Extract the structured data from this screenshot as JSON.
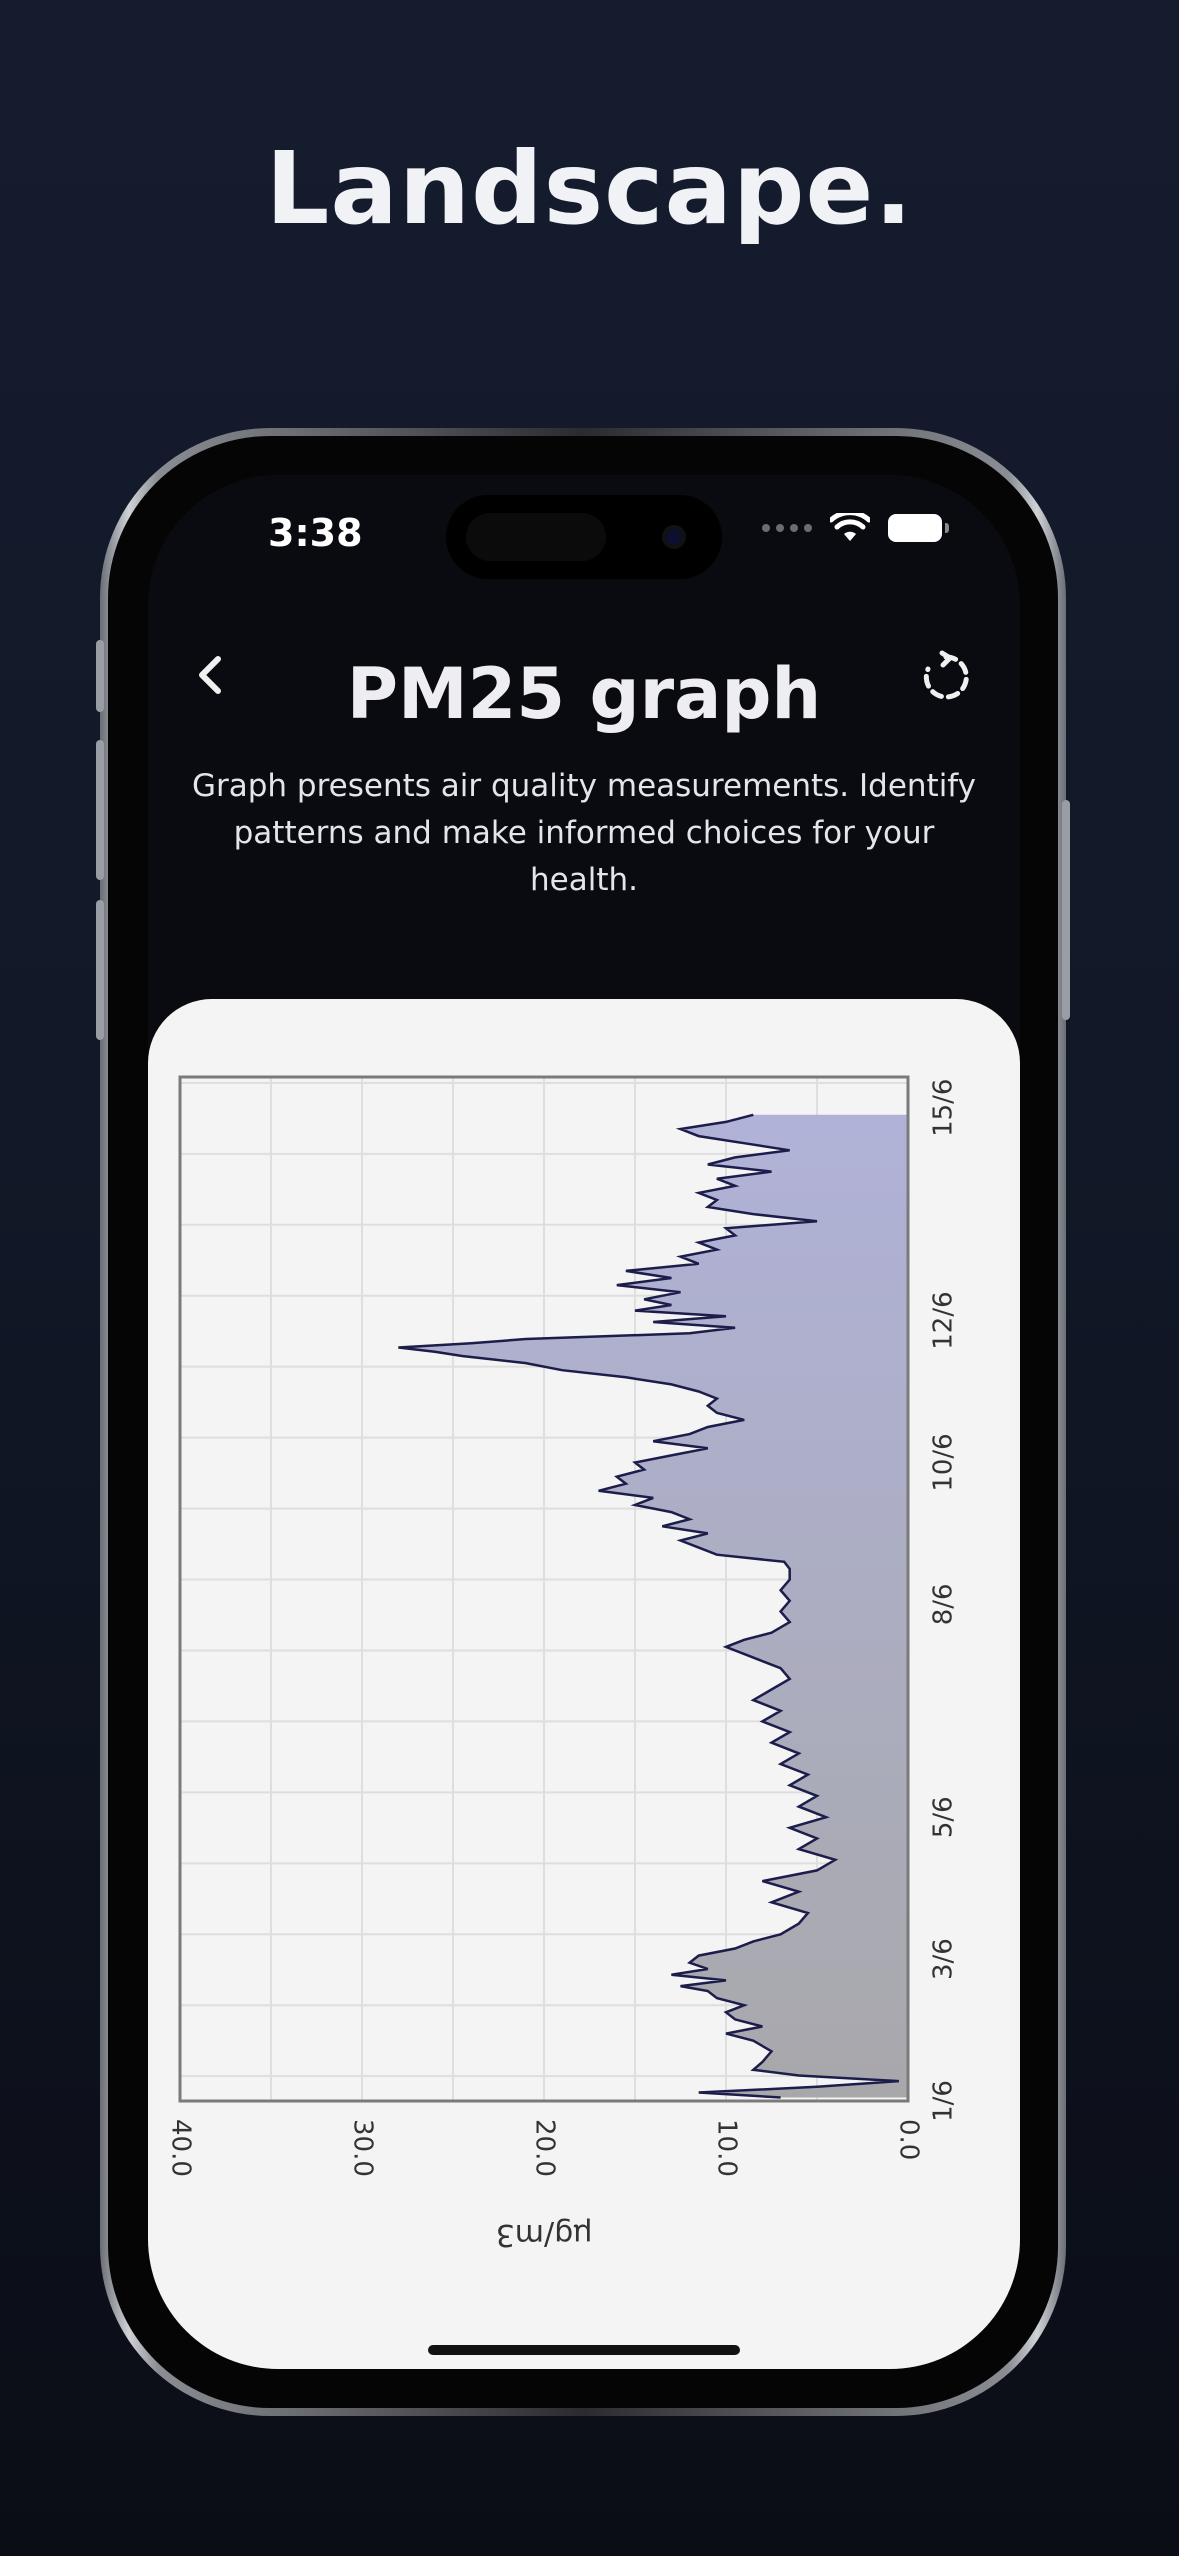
{
  "headline": "Landscape.",
  "status": {
    "time": "3:38"
  },
  "header": {
    "title": "PM25 graph"
  },
  "description": "Graph presents air quality measurements. Identify patterns and make informed choices for your health.",
  "chart_data": {
    "type": "area",
    "orientation": "rotated-90",
    "ylabel": "µg/m3",
    "ylim": [
      0,
      40
    ],
    "yticks": [
      "0.0",
      "10.0",
      "20.0",
      "30.0",
      "40.0"
    ],
    "xticks": [
      "1/6",
      "3/6",
      "5/6",
      "8/6",
      "10/6",
      "12/6",
      "15/6"
    ],
    "xrange_days": [
      1,
      15
    ],
    "grid": true,
    "fill_gradient": [
      "#a8a8ab",
      "#b0b2d8"
    ],
    "line_color": "#1c1d4a",
    "series": [
      {
        "points": [
          [
            1.05,
            7.0
          ],
          [
            1.12,
            11.5
          ],
          [
            1.2,
            5.0
          ],
          [
            1.28,
            0.5
          ],
          [
            1.36,
            6.0
          ],
          [
            1.44,
            8.5
          ],
          [
            1.55,
            8.0
          ],
          [
            1.7,
            7.5
          ],
          [
            1.85,
            8.5
          ],
          [
            1.95,
            10.0
          ],
          [
            2.05,
            8.0
          ],
          [
            2.15,
            9.5
          ],
          [
            2.25,
            10.0
          ],
          [
            2.35,
            9.0
          ],
          [
            2.45,
            10.5
          ],
          [
            2.55,
            11.0
          ],
          [
            2.62,
            12.5
          ],
          [
            2.7,
            10.0
          ],
          [
            2.78,
            13.0
          ],
          [
            2.86,
            11.0
          ],
          [
            2.95,
            12.0
          ],
          [
            3.05,
            11.5
          ],
          [
            3.15,
            9.5
          ],
          [
            3.25,
            8.5
          ],
          [
            3.35,
            7.0
          ],
          [
            3.5,
            6.0
          ],
          [
            3.65,
            5.5
          ],
          [
            3.8,
            7.5
          ],
          [
            3.95,
            6.0
          ],
          [
            4.1,
            8.0
          ],
          [
            4.25,
            5.0
          ],
          [
            4.4,
            4.0
          ],
          [
            4.55,
            6.0
          ],
          [
            4.7,
            5.0
          ],
          [
            4.85,
            6.5
          ],
          [
            5.0,
            4.5
          ],
          [
            5.15,
            6.0
          ],
          [
            5.3,
            5.0
          ],
          [
            5.45,
            6.5
          ],
          [
            5.6,
            5.5
          ],
          [
            5.75,
            7.0
          ],
          [
            5.9,
            6.0
          ],
          [
            6.05,
            7.5
          ],
          [
            6.2,
            6.5
          ],
          [
            6.35,
            8.0
          ],
          [
            6.5,
            7.0
          ],
          [
            6.65,
            8.5
          ],
          [
            6.8,
            7.5
          ],
          [
            6.95,
            6.5
          ],
          [
            7.1,
            7.0
          ],
          [
            7.25,
            8.5
          ],
          [
            7.4,
            10.0
          ],
          [
            7.5,
            9.0
          ],
          [
            7.6,
            7.5
          ],
          [
            7.75,
            6.5
          ],
          [
            7.9,
            7.0
          ],
          [
            8.05,
            6.5
          ],
          [
            8.2,
            7.0
          ],
          [
            8.35,
            6.5
          ],
          [
            8.5,
            6.5
          ],
          [
            8.6,
            6.8
          ],
          [
            8.7,
            10.5
          ],
          [
            8.8,
            11.5
          ],
          [
            8.9,
            12.5
          ],
          [
            9.0,
            11.0
          ],
          [
            9.1,
            13.5
          ],
          [
            9.2,
            12.0
          ],
          [
            9.3,
            13.0
          ],
          [
            9.4,
            15.0
          ],
          [
            9.5,
            14.0
          ],
          [
            9.6,
            17.0
          ],
          [
            9.7,
            15.5
          ],
          [
            9.8,
            16.0
          ],
          [
            9.9,
            14.5
          ],
          [
            10.0,
            15.0
          ],
          [
            10.1,
            13.0
          ],
          [
            10.2,
            11.0
          ],
          [
            10.3,
            14.0
          ],
          [
            10.4,
            12.0
          ],
          [
            10.5,
            11.0
          ],
          [
            10.6,
            9.0
          ],
          [
            10.7,
            10.5
          ],
          [
            10.8,
            11.0
          ],
          [
            10.9,
            10.5
          ],
          [
            11.0,
            11.5
          ],
          [
            11.1,
            13.0
          ],
          [
            11.2,
            15.5
          ],
          [
            11.3,
            19.0
          ],
          [
            11.4,
            21.0
          ],
          [
            11.5,
            24.5
          ],
          [
            11.56,
            26.0
          ],
          [
            11.62,
            28.0
          ],
          [
            11.68,
            24.0
          ],
          [
            11.74,
            21.0
          ],
          [
            11.82,
            12.0
          ],
          [
            11.9,
            9.5
          ],
          [
            11.98,
            14.0
          ],
          [
            12.06,
            10.0
          ],
          [
            12.14,
            15.0
          ],
          [
            12.22,
            13.0
          ],
          [
            12.3,
            14.5
          ],
          [
            12.4,
            12.5
          ],
          [
            12.5,
            16.0
          ],
          [
            12.6,
            13.0
          ],
          [
            12.7,
            15.5
          ],
          [
            12.8,
            11.5
          ],
          [
            12.9,
            12.5
          ],
          [
            13.0,
            10.5
          ],
          [
            13.1,
            11.5
          ],
          [
            13.2,
            9.5
          ],
          [
            13.3,
            10.0
          ],
          [
            13.4,
            5.0
          ],
          [
            13.5,
            8.5
          ],
          [
            13.6,
            11.0
          ],
          [
            13.7,
            10.5
          ],
          [
            13.8,
            11.5
          ],
          [
            13.9,
            9.5
          ],
          [
            14.0,
            10.5
          ],
          [
            14.1,
            7.5
          ],
          [
            14.2,
            11.0
          ],
          [
            14.3,
            9.5
          ],
          [
            14.4,
            6.5
          ],
          [
            14.5,
            9.0
          ],
          [
            14.6,
            11.5
          ],
          [
            14.7,
            12.5
          ],
          [
            14.8,
            10.0
          ],
          [
            14.9,
            8.5
          ]
        ]
      }
    ]
  }
}
